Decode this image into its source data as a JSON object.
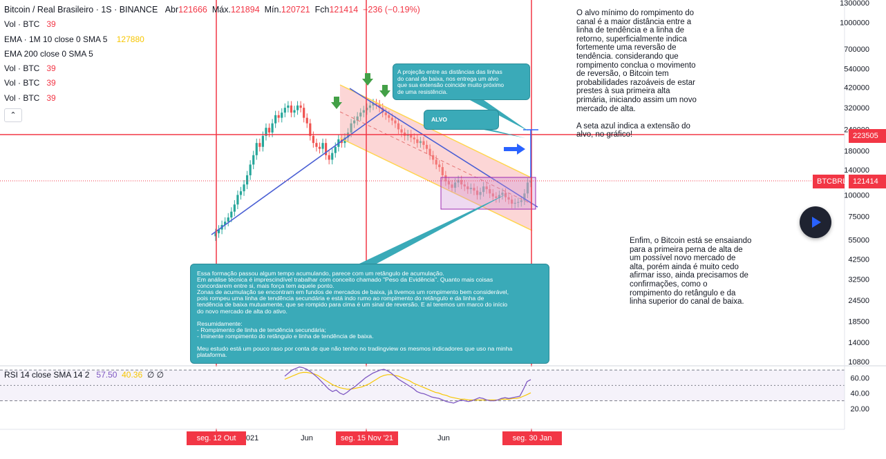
{
  "header": {
    "symbol": "Bitcoin / Real Brasileiro · 1S · BINANCE",
    "o_label": "Abr",
    "o_val": "121666",
    "h_label": "Máx.",
    "h_val": "121894",
    "l_label": "Mín.",
    "l_val": "120721",
    "c_label": "Fch",
    "c_val": "121414",
    "change": "−236 (−0.19%)"
  },
  "indicators": [
    {
      "name": "Vol · BTC",
      "value": "39"
    },
    {
      "name": "EMA · 1M 10 close 0 SMA 5",
      "value": "127880"
    },
    {
      "name": "EMA 200 close 0 SMA 5",
      "value": ""
    },
    {
      "name": "Vol · BTC",
      "value": "39"
    },
    {
      "name": "Vol · BTC",
      "value": "39"
    },
    {
      "name": "Vol · BTC",
      "value": "39"
    }
  ],
  "collapse_icon": "chevron-up-icon",
  "collapse_glyph": "⌃",
  "rsi": {
    "label": "RSI 14 close SMA 14 2",
    "v1": "57.50",
    "v2": "40.36",
    "v3": "∅ ∅"
  },
  "notes": {
    "right_top": [
      "O alvo mínimo do rompimento do",
      "canal é a maior distância entre a",
      "linha de tendência e a linha de",
      "retorno, superficialmente indica",
      "fortemente uma reversão de",
      "tendência. considerando que",
      "rompimento conclua o movimento",
      "de reversão, o Bitcoin tem",
      "probabilidades razoáveis de estar",
      "prestes à sua primeira alta",
      "primária, iniciando assim um novo",
      "mercado de alta.",
      "",
      "A seta azul indica a extensão do",
      "alvo, no gráfico!"
    ],
    "right_bottom": [
      "Enfim, o Bitcoin está se ensaiando",
      "para a primeira perna de alta de",
      "um possível novo mercado de",
      "alta, porém ainda é muito cedo",
      "afirmar isso, ainda precisamos de",
      "confirmações, como o",
      "rompimento do retângulo e da",
      "linha superior do canal de baixa."
    ]
  },
  "callouts": {
    "projection": [
      "A projeção entre as distâncias das linhas",
      "do canal de baixa, nos entrega um alvo",
      "que sua extensão coincide muito próximo",
      "de uma resistência."
    ],
    "alvo": "ALVO",
    "main": [
      "Essa formação passou algum tempo acumulando, parece com um retângulo de acumulação.",
      "Em análise técnica é imprescindível trabalhar com conceito chamado \"Peso da Evidência\". Quanto mais coisas",
      "concordarem entre si, mais força tem aquele ponto.",
      "Zonas de acumulação se encontram em fundos de mercados de baixa, já tivemos um rompimento bem considerável,",
      "pois rompeu uma linha de tendência secundária e está indo rumo ao rompimento do retângulo e da linha de",
      "tendência de baixa mutuamente, que se rompido para cima é um sinal de reversão. E aí teremos um marco do início",
      "do novo mercado de alta do ativo.",
      "",
      "Resumidamente:",
      "- Rompimento de linha de tendência secundária;",
      "- Iminente rompimento do retângulo e linha de tendência de baixa.",
      "",
      "Meu estudo está um pouco raso por conta de que não tenho no tradingview os mesmos indicadores que uso na minha",
      "plataforma."
    ]
  },
  "price_badges": {
    "level_price": "223505",
    "last_symbol": "BTCBRL",
    "last_price": "121414"
  },
  "date_badges": [
    "seg. 12 Out '20",
    "seg. 15 Nov '21",
    "seg. 30 Jan '23"
  ],
  "x_ticks": [
    "2021",
    "Jun",
    "Jun"
  ],
  "play_icon": "play-icon",
  "colors": {
    "up": "#26a69a",
    "down": "#ef5350",
    "channel": "#ffd54f",
    "trendline": "#4a5fd4",
    "vline": "#f23645",
    "callout": "#3aaab8",
    "rsi_line": "#7e57c2",
    "rsi_ma": "#f7c600"
  },
  "chart_data": {
    "type": "candlestick",
    "price_axis": {
      "scale": "log",
      "ticks": [
        1300000,
        1000000,
        700000,
        540000,
        420000,
        320000,
        240000,
        180000,
        140000,
        100000,
        75000,
        55000,
        42500,
        32500,
        24500,
        18500,
        14000,
        10800
      ]
    },
    "rsi_axis": {
      "ticks": [
        60.0,
        40.0,
        20.0
      ]
    },
    "ohlc_weekly_close": [
      60000,
      63000,
      67000,
      70000,
      74000,
      80000,
      88000,
      100000,
      105000,
      115000,
      130000,
      150000,
      170000,
      200000,
      190000,
      220000,
      245000,
      230000,
      260000,
      290000,
      280000,
      300000,
      320000,
      330000,
      300000,
      310000,
      330000,
      320000,
      280000,
      260000,
      220000,
      200000,
      190000,
      185000,
      200000,
      170000,
      160000,
      175000,
      190000,
      210000,
      200000,
      215000,
      230000,
      260000,
      270000,
      285000,
      300000,
      310000,
      320000,
      330000,
      340000,
      335000,
      320000,
      300000,
      290000,
      280000,
      270000,
      260000,
      240000,
      230000,
      220000,
      225000,
      215000,
      210000,
      200000,
      205000,
      195000,
      185000,
      170000,
      160000,
      150000,
      145000,
      130000,
      120000,
      115000,
      110000,
      118000,
      122000,
      115000,
      112000,
      108000,
      110000,
      106000,
      100000,
      104000,
      112000,
      108000,
      102000,
      98000,
      96000,
      100000,
      103000,
      97000,
      94000,
      89000,
      90000,
      91000,
      93000,
      102000,
      118000,
      121414
    ],
    "levels": [
      223505,
      121414
    ]
  }
}
